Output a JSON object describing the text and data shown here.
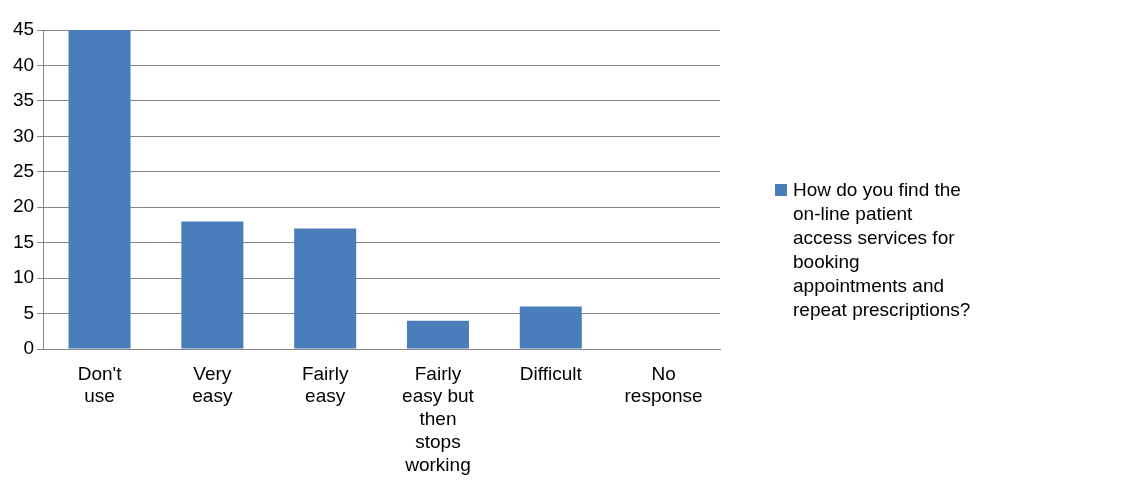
{
  "chart_data": {
    "type": "bar",
    "categories": [
      "Don't use",
      "Very easy",
      "Fairly easy",
      "Fairly easy but then stops working",
      "Difficult",
      "No response"
    ],
    "series": [
      {
        "name": "How do you find the on-line patient access services for booking appointments and repeat prescriptions?",
        "color": "#4a7ebb",
        "values": [
          45,
          18,
          17,
          4,
          6,
          0
        ]
      }
    ],
    "ylim": [
      0,
      45
    ],
    "yticks": [
      0,
      5,
      10,
      15,
      20,
      25,
      30,
      35,
      40,
      45
    ],
    "grid": "y",
    "legend": "right"
  }
}
